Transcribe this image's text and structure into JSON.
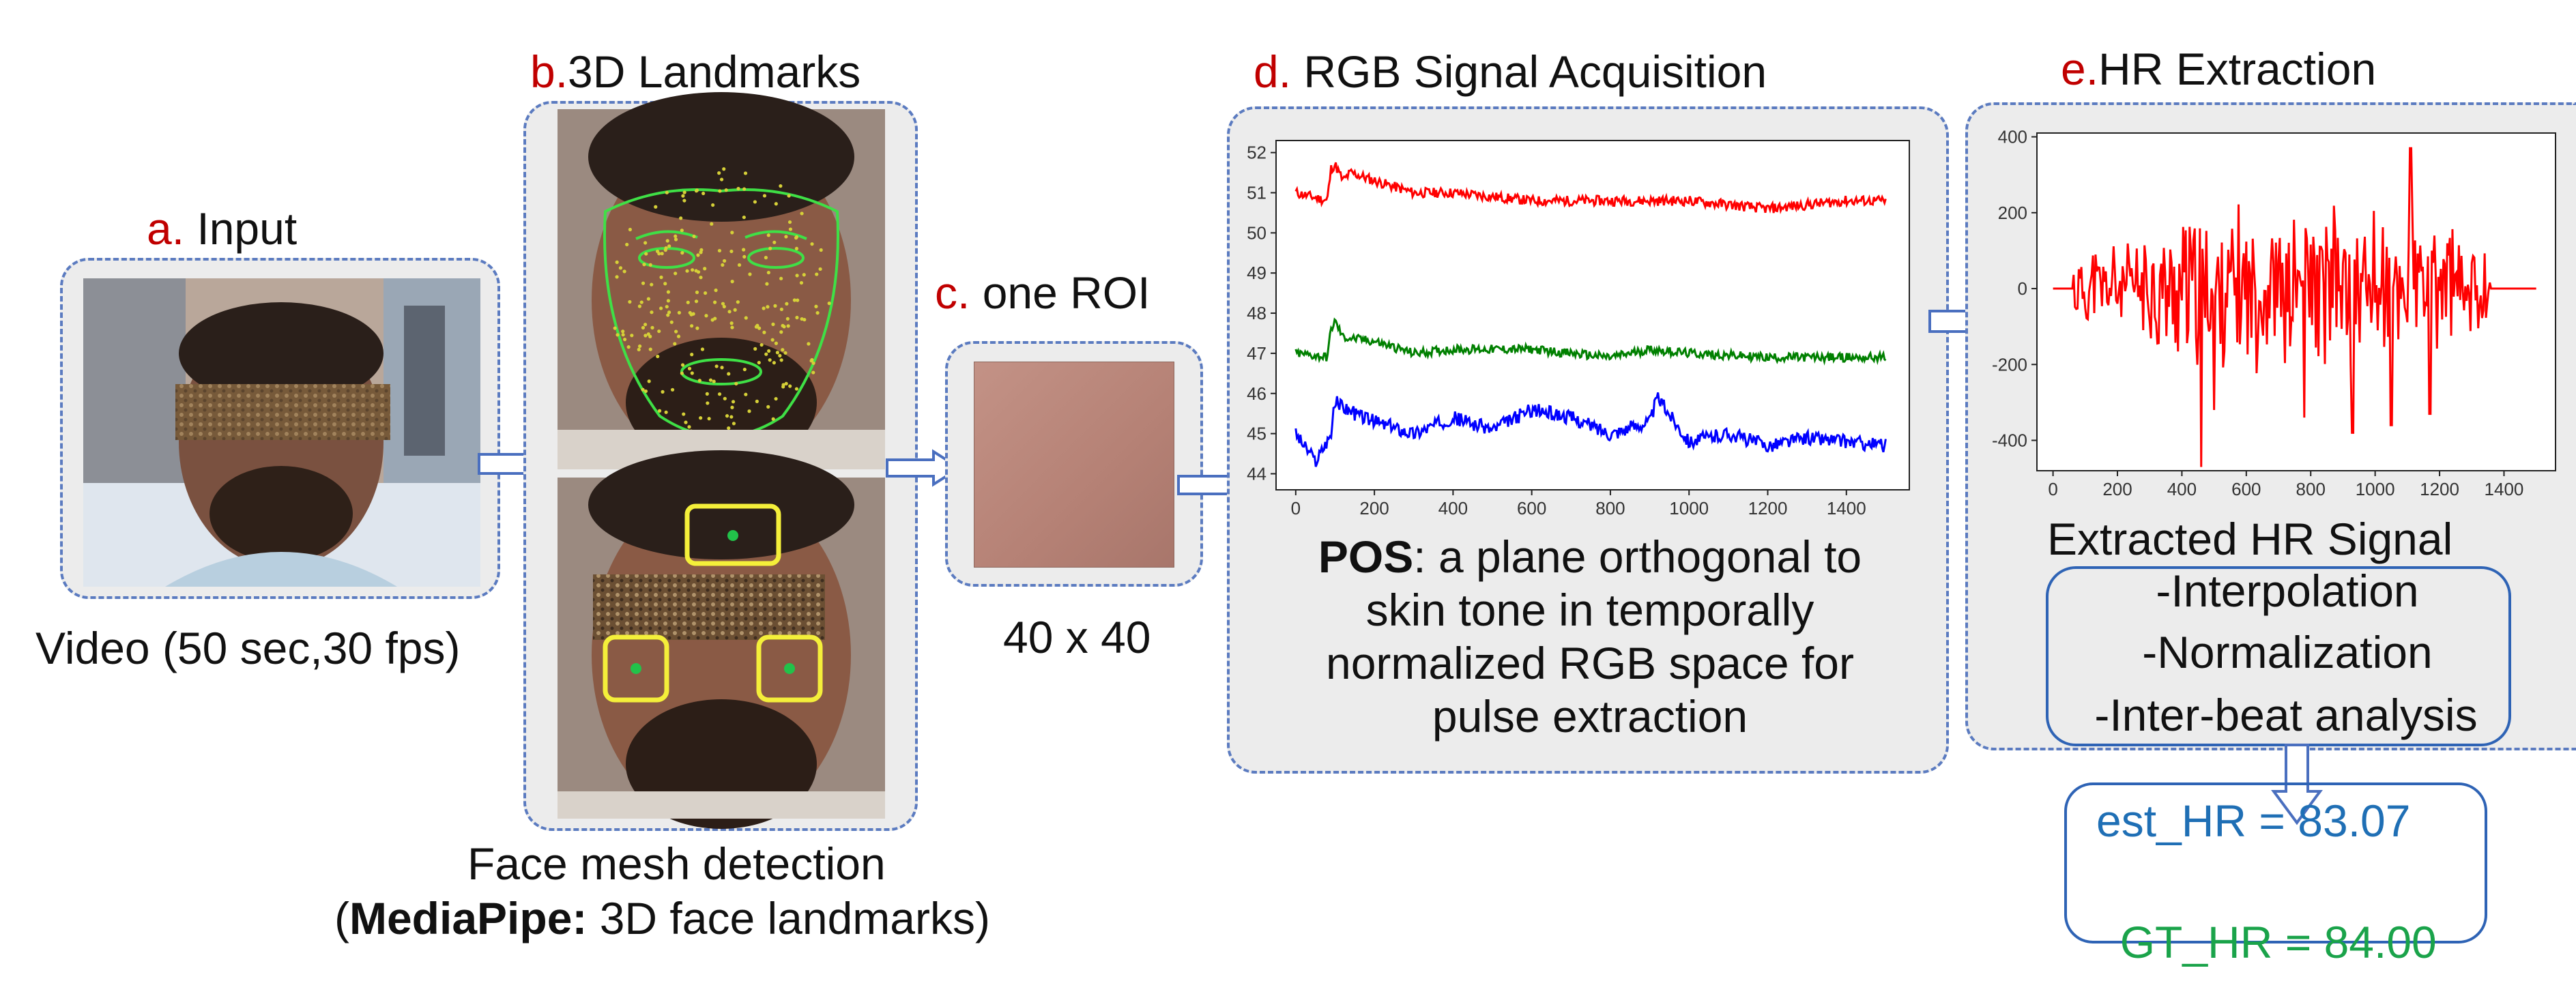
{
  "steps": {
    "a": {
      "key": "a.",
      "title": "Input",
      "caption": "Video (50 sec,30 fps)"
    },
    "b": {
      "key": "b.",
      "title": "3D Landmarks",
      "caption1": "Face mesh detection",
      "caption2_bold": "MediaPipe:",
      "caption2_rest": " 3D face landmarks"
    },
    "c": {
      "key": "c.",
      "title": "one ROI",
      "caption": "40 x 40"
    },
    "d": {
      "key": "d.",
      "title": "RGB Signal Acquisition",
      "desc_bold": "POS",
      "desc_rest": ": a plane orthogonal to",
      "desc_line2": "skin tone in temporally",
      "desc_line3": "normalized RGB space for",
      "desc_line4": "pulse extraction"
    },
    "e": {
      "key": "e.",
      "title": "HR Extraction",
      "caption": "Extracted HR Signal",
      "steps": [
        "-Interpolation",
        "-Normalization",
        "-Inter-beat analysis"
      ]
    }
  },
  "result": {
    "est_label": "est_HR",
    "est_value": "= 83.07",
    "gt_label": "GT_HR",
    "gt_value": " = 84.00"
  },
  "colors": {
    "accent_red": "#c00000",
    "arrow": "#4a6fbf",
    "est": "#1f6fb5",
    "gt": "#1aa34a"
  },
  "chart_data": [
    {
      "type": "line",
      "title": "",
      "xlim": [
        -50,
        1560
      ],
      "ylim": [
        43.6,
        52.3
      ],
      "xticks": [
        0,
        200,
        400,
        600,
        800,
        1000,
        1200,
        1400
      ],
      "yticks": [
        44,
        45,
        46,
        47,
        48,
        49,
        50,
        51,
        52
      ],
      "series": [
        {
          "color": "#ff0000",
          "base": 51.0,
          "noise": 0.25,
          "x": [
            0,
            80,
            90,
            100,
            120,
            140,
            200,
            300,
            400,
            600,
            800,
            1000,
            1200,
            1400,
            1500
          ],
          "y": [
            51.0,
            50.8,
            51.6,
            51.7,
            51.3,
            51.5,
            51.3,
            51.0,
            51.0,
            50.8,
            50.8,
            50.8,
            50.6,
            50.8,
            50.8
          ]
        },
        {
          "color": "#008000",
          "base": 47.0,
          "noise": 0.22,
          "x": [
            0,
            80,
            90,
            100,
            120,
            200,
            300,
            400,
            600,
            800,
            900,
            1000,
            1200,
            1400,
            1500
          ],
          "y": [
            47.0,
            46.9,
            47.6,
            47.8,
            47.4,
            47.3,
            47.0,
            47.1,
            47.1,
            46.9,
            47.1,
            47.0,
            46.9,
            46.9,
            46.9
          ]
        },
        {
          "color": "#0000ff",
          "base": 45.0,
          "noise": 0.35,
          "x": [
            0,
            50,
            90,
            100,
            150,
            200,
            300,
            400,
            500,
            600,
            700,
            800,
            900,
            920,
            1000,
            1100,
            1200,
            1300,
            1400,
            1500
          ],
          "y": [
            45.0,
            44.3,
            45.0,
            45.8,
            45.5,
            45.3,
            45.0,
            45.4,
            45.1,
            45.6,
            45.4,
            45.0,
            45.3,
            45.9,
            44.8,
            45.0,
            44.7,
            44.9,
            44.8,
            44.7
          ]
        }
      ]
    },
    {
      "type": "line",
      "title": "",
      "xlim": [
        -50,
        1560
      ],
      "ylim": [
        -480,
        410
      ],
      "xticks": [
        0,
        200,
        400,
        600,
        800,
        1000,
        1200,
        1400
      ],
      "yticks": [
        -400,
        -200,
        0,
        200,
        400
      ],
      "series": [
        {
          "color": "#ff0000",
          "x": [
            0,
            60,
            1350,
            1500
          ],
          "y": [
            0,
            0,
            0,
            0
          ],
          "spikes": [
            [
              460,
              -470
            ],
            [
              1110,
              370
            ],
            [
              500,
              -320
            ],
            [
              930,
              -380
            ],
            [
              780,
              -340
            ],
            [
              1050,
              -360
            ],
            [
              1170,
              -330
            ]
          ]
        }
      ]
    }
  ]
}
